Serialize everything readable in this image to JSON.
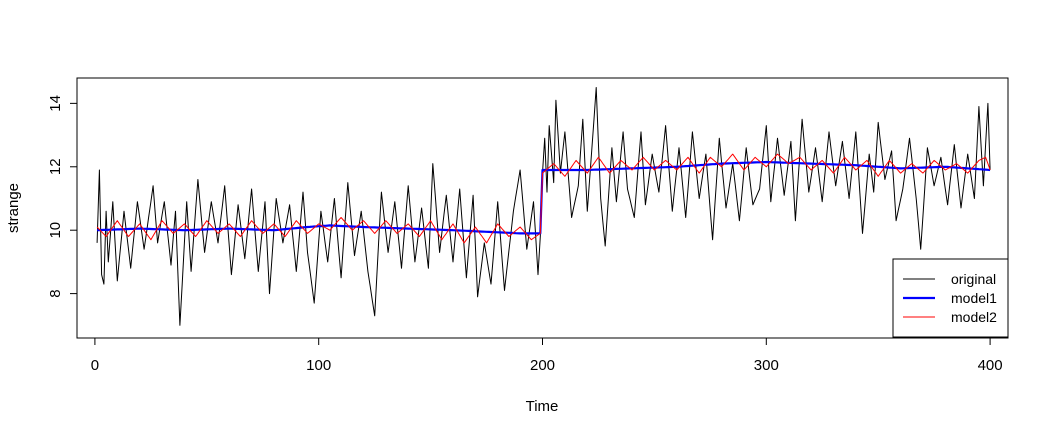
{
  "chart_data": {
    "type": "line",
    "title": "",
    "xlabel": "Time",
    "ylabel": "strange",
    "xlim": [
      -8,
      408
    ],
    "ylim": [
      6.6,
      14.8
    ],
    "xticks": [
      0,
      100,
      200,
      300,
      400
    ],
    "yticks": [
      8,
      10,
      12,
      14
    ],
    "grid": false,
    "legend_position": "bottom-right",
    "series": [
      {
        "name": "original",
        "color": "#000000",
        "anchors": [
          [
            1,
            9.6
          ],
          [
            2,
            11.9
          ],
          [
            3,
            8.6
          ],
          [
            4,
            8.3
          ],
          [
            5,
            10.6
          ],
          [
            6,
            9.0
          ],
          [
            8,
            10.9
          ],
          [
            10,
            8.4
          ],
          [
            13,
            10.6
          ],
          [
            16,
            8.8
          ],
          [
            19,
            10.9
          ],
          [
            22,
            9.4
          ],
          [
            26,
            11.4
          ],
          [
            28,
            9.6
          ],
          [
            31,
            10.9
          ],
          [
            34,
            8.9
          ],
          [
            36,
            10.6
          ],
          [
            38,
            7.0
          ],
          [
            41,
            10.9
          ],
          [
            43,
            8.7
          ],
          [
            46,
            11.6
          ],
          [
            49,
            9.3
          ],
          [
            52,
            10.9
          ],
          [
            55,
            9.6
          ],
          [
            58,
            11.4
          ],
          [
            61,
            8.6
          ],
          [
            64,
            10.8
          ],
          [
            67,
            9.1
          ],
          [
            70,
            11.3
          ],
          [
            73,
            8.7
          ],
          [
            76,
            10.9
          ],
          [
            78,
            8.0
          ],
          [
            81,
            11.0
          ],
          [
            84,
            9.6
          ],
          [
            87,
            10.8
          ],
          [
            90,
            8.7
          ],
          [
            93,
            11.2
          ],
          [
            95,
            9.3
          ],
          [
            98,
            7.7
          ],
          [
            101,
            10.6
          ],
          [
            104,
            9.0
          ],
          [
            107,
            11.0
          ],
          [
            110,
            8.5
          ],
          [
            113,
            11.5
          ],
          [
            116,
            9.2
          ],
          [
            119,
            10.6
          ],
          [
            122,
            8.7
          ],
          [
            125,
            7.3
          ],
          [
            128,
            11.2
          ],
          [
            131,
            9.3
          ],
          [
            134,
            10.9
          ],
          [
            137,
            8.8
          ],
          [
            140,
            11.4
          ],
          [
            143,
            9.0
          ],
          [
            146,
            10.7
          ],
          [
            149,
            8.8
          ],
          [
            151,
            12.1
          ],
          [
            154,
            9.3
          ],
          [
            157,
            11.1
          ],
          [
            160,
            9.0
          ],
          [
            163,
            11.3
          ],
          [
            166,
            8.5
          ],
          [
            169,
            11.1
          ],
          [
            171,
            7.9
          ],
          [
            174,
            9.6
          ],
          [
            177,
            8.3
          ],
          [
            180,
            10.9
          ],
          [
            183,
            8.1
          ],
          [
            187,
            10.6
          ],
          [
            190,
            11.9
          ],
          [
            193,
            9.4
          ],
          [
            196,
            10.9
          ],
          [
            198,
            8.6
          ],
          [
            199,
            9.8
          ],
          [
            200,
            11.8
          ],
          [
            201,
            12.9
          ],
          [
            202,
            11.2
          ],
          [
            203,
            13.3
          ],
          [
            205,
            11.5
          ],
          [
            206,
            14.1
          ],
          [
            208,
            11.8
          ],
          [
            210,
            13.1
          ],
          [
            213,
            10.4
          ],
          [
            216,
            11.4
          ],
          [
            218,
            13.5
          ],
          [
            220,
            10.6
          ],
          [
            222,
            12.5
          ],
          [
            224,
            14.5
          ],
          [
            226,
            11.0
          ],
          [
            228,
            9.5
          ],
          [
            231,
            12.6
          ],
          [
            233,
            10.9
          ],
          [
            236,
            13.1
          ],
          [
            238,
            11.3
          ],
          [
            241,
            10.4
          ],
          [
            244,
            13.1
          ],
          [
            246,
            10.8
          ],
          [
            249,
            12.4
          ],
          [
            252,
            11.2
          ],
          [
            255,
            13.3
          ],
          [
            258,
            10.6
          ],
          [
            261,
            12.6
          ],
          [
            264,
            10.4
          ],
          [
            267,
            13.1
          ],
          [
            270,
            11.0
          ],
          [
            273,
            12.4
          ],
          [
            276,
            9.7
          ],
          [
            279,
            12.9
          ],
          [
            282,
            10.7
          ],
          [
            285,
            12.1
          ],
          [
            288,
            10.3
          ],
          [
            291,
            12.6
          ],
          [
            294,
            10.8
          ],
          [
            297,
            11.3
          ],
          [
            300,
            13.3
          ],
          [
            302,
            10.9
          ],
          [
            305,
            12.9
          ],
          [
            308,
            11.1
          ],
          [
            311,
            12.8
          ],
          [
            313,
            10.3
          ],
          [
            316,
            13.5
          ],
          [
            319,
            11.2
          ],
          [
            322,
            12.6
          ],
          [
            325,
            10.9
          ],
          [
            328,
            13.1
          ],
          [
            331,
            11.4
          ],
          [
            334,
            12.8
          ],
          [
            337,
            11.0
          ],
          [
            340,
            13.1
          ],
          [
            343,
            9.9
          ],
          [
            346,
            12.4
          ],
          [
            348,
            11.2
          ],
          [
            350,
            13.4
          ],
          [
            353,
            11.6
          ],
          [
            356,
            12.5
          ],
          [
            358,
            10.3
          ],
          [
            361,
            11.3
          ],
          [
            364,
            12.9
          ],
          [
            367,
            11.0
          ],
          [
            369,
            9.4
          ],
          [
            372,
            12.6
          ],
          [
            375,
            11.4
          ],
          [
            378,
            12.3
          ],
          [
            381,
            10.8
          ],
          [
            384,
            12.7
          ],
          [
            387,
            10.7
          ],
          [
            390,
            12.4
          ],
          [
            393,
            11.0
          ],
          [
            395,
            13.9
          ],
          [
            397,
            11.4
          ],
          [
            399,
            14.0
          ],
          [
            400,
            11.9
          ]
        ]
      },
      {
        "name": "model1",
        "color": "#0000ff",
        "anchors": [
          [
            1,
            10.0
          ],
          [
            20,
            10.05
          ],
          [
            40,
            10.0
          ],
          [
            60,
            10.05
          ],
          [
            80,
            10.0
          ],
          [
            95,
            10.1
          ],
          [
            105,
            10.15
          ],
          [
            120,
            10.1
          ],
          [
            140,
            10.05
          ],
          [
            160,
            10.0
          ],
          [
            175,
            9.95
          ],
          [
            190,
            9.9
          ],
          [
            199,
            9.9
          ],
          [
            200,
            11.9
          ],
          [
            220,
            11.9
          ],
          [
            240,
            11.95
          ],
          [
            260,
            12.0
          ],
          [
            280,
            12.1
          ],
          [
            300,
            12.15
          ],
          [
            320,
            12.1
          ],
          [
            340,
            12.05
          ],
          [
            360,
            11.95
          ],
          [
            380,
            12.0
          ],
          [
            400,
            11.9
          ]
        ]
      },
      {
        "name": "model2",
        "color": "#ff0000",
        "anchors": [
          [
            1,
            10.1
          ],
          [
            5,
            9.8
          ],
          [
            10,
            10.3
          ],
          [
            15,
            9.8
          ],
          [
            20,
            10.2
          ],
          [
            25,
            9.7
          ],
          [
            30,
            10.3
          ],
          [
            35,
            9.9
          ],
          [
            40,
            10.2
          ],
          [
            45,
            9.8
          ],
          [
            50,
            10.3
          ],
          [
            55,
            9.9
          ],
          [
            60,
            10.2
          ],
          [
            65,
            9.8
          ],
          [
            70,
            10.3
          ],
          [
            75,
            9.9
          ],
          [
            80,
            10.2
          ],
          [
            85,
            9.8
          ],
          [
            90,
            10.3
          ],
          [
            95,
            9.9
          ],
          [
            100,
            10.2
          ],
          [
            105,
            10.0
          ],
          [
            110,
            10.4
          ],
          [
            115,
            10.0
          ],
          [
            120,
            10.3
          ],
          [
            125,
            9.9
          ],
          [
            130,
            10.3
          ],
          [
            135,
            9.9
          ],
          [
            140,
            10.2
          ],
          [
            145,
            9.8
          ],
          [
            150,
            10.3
          ],
          [
            155,
            9.7
          ],
          [
            160,
            10.2
          ],
          [
            165,
            9.6
          ],
          [
            170,
            10.1
          ],
          [
            175,
            9.6
          ],
          [
            180,
            10.2
          ],
          [
            185,
            9.8
          ],
          [
            190,
            10.1
          ],
          [
            195,
            9.7
          ],
          [
            199,
            9.9
          ],
          [
            200,
            11.8
          ],
          [
            205,
            12.1
          ],
          [
            210,
            11.7
          ],
          [
            215,
            12.2
          ],
          [
            220,
            11.8
          ],
          [
            225,
            12.3
          ],
          [
            230,
            11.8
          ],
          [
            235,
            12.2
          ],
          [
            240,
            11.9
          ],
          [
            245,
            12.3
          ],
          [
            250,
            11.9
          ],
          [
            255,
            12.2
          ],
          [
            260,
            11.9
          ],
          [
            265,
            12.3
          ],
          [
            270,
            11.8
          ],
          [
            275,
            12.3
          ],
          [
            280,
            12.0
          ],
          [
            285,
            12.4
          ],
          [
            290,
            11.9
          ],
          [
            295,
            12.3
          ],
          [
            300,
            12.0
          ],
          [
            305,
            12.4
          ],
          [
            310,
            12.1
          ],
          [
            315,
            12.3
          ],
          [
            320,
            11.9
          ],
          [
            325,
            12.2
          ],
          [
            330,
            11.8
          ],
          [
            335,
            12.3
          ],
          [
            340,
            11.9
          ],
          [
            345,
            12.2
          ],
          [
            350,
            11.7
          ],
          [
            355,
            12.2
          ],
          [
            360,
            11.8
          ],
          [
            365,
            12.1
          ],
          [
            370,
            11.8
          ],
          [
            375,
            12.2
          ],
          [
            380,
            11.9
          ],
          [
            385,
            12.1
          ],
          [
            390,
            11.8
          ],
          [
            395,
            12.2
          ],
          [
            398,
            12.3
          ],
          [
            400,
            11.9
          ]
        ]
      }
    ]
  }
}
